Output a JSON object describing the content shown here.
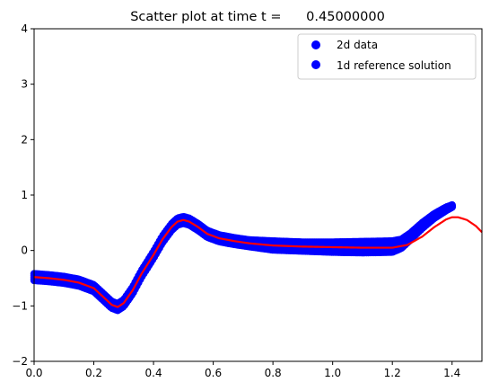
{
  "chart_data": {
    "type": "scatter",
    "title": "Scatter plot at time t =      0.45000000",
    "xlabel": "",
    "ylabel": "",
    "xlim": [
      0.0,
      1.5
    ],
    "ylim": [
      -2,
      4
    ],
    "xticks": [
      "0.0",
      "0.2",
      "0.4",
      "0.6",
      "0.8",
      "1.0",
      "1.2",
      "1.4"
    ],
    "yticks": [
      "−2",
      "−1",
      "0",
      "1",
      "2",
      "3",
      "4"
    ],
    "grid": false,
    "legend_position": "top-right",
    "series": [
      {
        "name": "2d data",
        "kind": "scatter",
        "color": "#0000ff",
        "x": [
          0.0,
          0.05,
          0.1,
          0.15,
          0.2,
          0.23,
          0.26,
          0.28,
          0.3,
          0.33,
          0.36,
          0.4,
          0.43,
          0.46,
          0.48,
          0.5,
          0.52,
          0.55,
          0.58,
          0.62,
          0.67,
          0.72,
          0.8,
          0.9,
          1.0,
          1.1,
          1.2,
          1.23,
          1.26,
          1.3,
          1.34,
          1.38,
          1.4
        ],
        "y": [
          -0.48,
          -0.5,
          -0.53,
          -0.58,
          -0.68,
          -0.83,
          -0.98,
          -1.02,
          -0.95,
          -0.72,
          -0.42,
          -0.08,
          0.2,
          0.42,
          0.52,
          0.55,
          0.52,
          0.42,
          0.3,
          0.22,
          0.17,
          0.13,
          0.09,
          0.07,
          0.06,
          0.06,
          0.07,
          0.12,
          0.25,
          0.45,
          0.62,
          0.75,
          0.8
        ],
        "spread": [
          0.06,
          0.06,
          0.06,
          0.06,
          0.06,
          0.06,
          0.06,
          0.06,
          0.06,
          0.06,
          0.06,
          0.06,
          0.06,
          0.06,
          0.06,
          0.06,
          0.06,
          0.06,
          0.06,
          0.06,
          0.06,
          0.06,
          0.08,
          0.08,
          0.09,
          0.1,
          0.1,
          0.08,
          0.06,
          0.05,
          0.04,
          0.03,
          0.02
        ]
      },
      {
        "name": "1d reference solution",
        "kind": "line",
        "color": "#ff0000",
        "legend_marker_color": "#0000ff",
        "x": [
          0.0,
          0.05,
          0.1,
          0.15,
          0.2,
          0.23,
          0.26,
          0.28,
          0.3,
          0.33,
          0.36,
          0.4,
          0.43,
          0.46,
          0.48,
          0.5,
          0.52,
          0.55,
          0.58,
          0.62,
          0.67,
          0.72,
          0.8,
          0.9,
          1.0,
          1.1,
          1.15,
          1.2,
          1.25,
          1.3,
          1.34,
          1.38,
          1.4,
          1.42,
          1.45,
          1.48,
          1.5
        ],
        "y": [
          -0.48,
          -0.5,
          -0.53,
          -0.58,
          -0.68,
          -0.83,
          -0.98,
          -1.02,
          -0.95,
          -0.72,
          -0.42,
          -0.08,
          0.2,
          0.42,
          0.52,
          0.55,
          0.52,
          0.42,
          0.3,
          0.22,
          0.17,
          0.13,
          0.09,
          0.07,
          0.06,
          0.05,
          0.05,
          0.05,
          0.1,
          0.25,
          0.42,
          0.56,
          0.6,
          0.6,
          0.55,
          0.44,
          0.33
        ]
      }
    ]
  }
}
